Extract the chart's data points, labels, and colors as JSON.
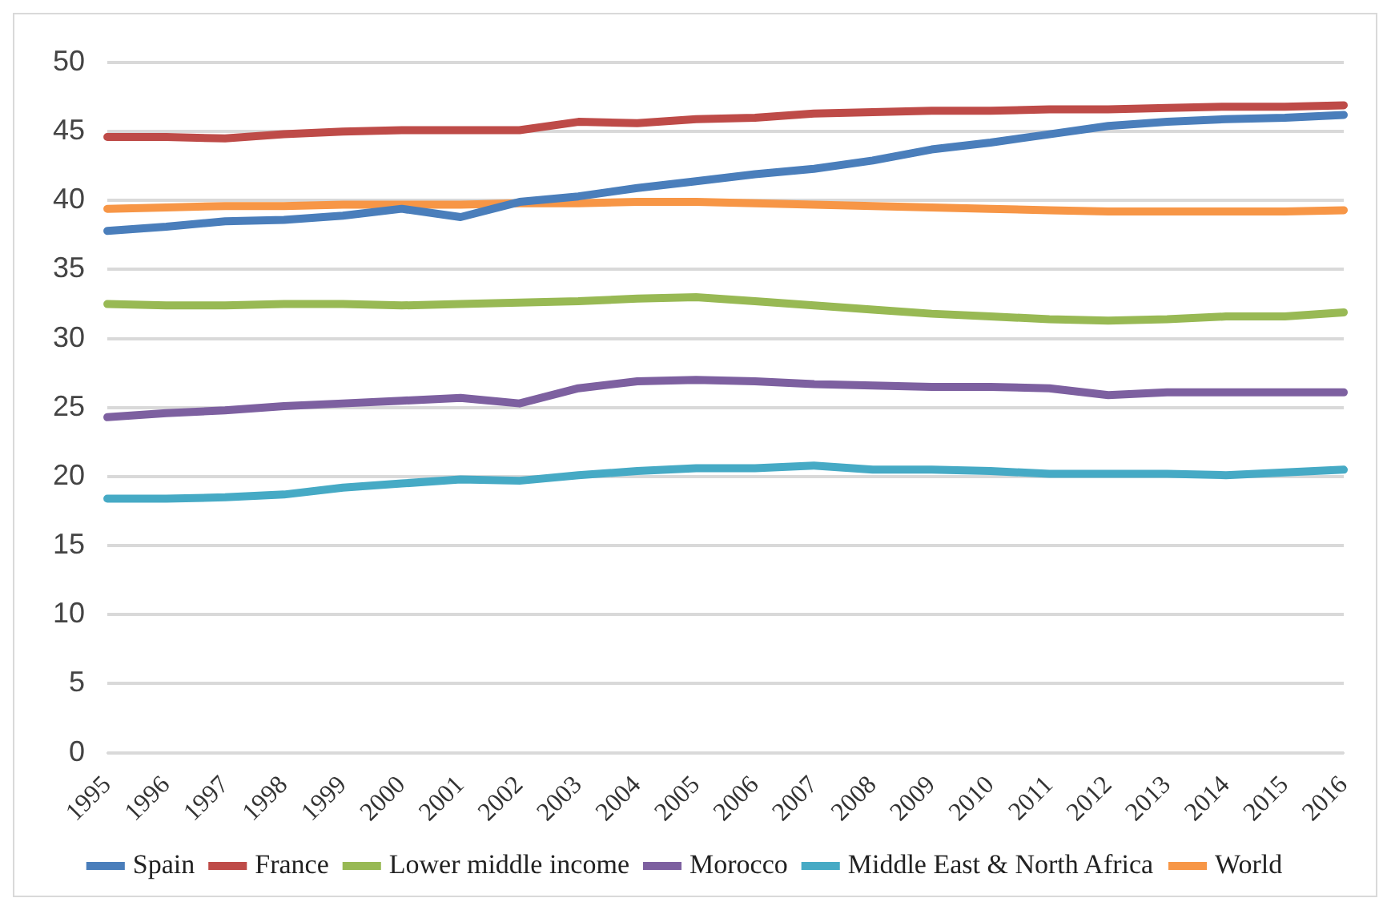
{
  "chart_data": {
    "type": "line",
    "categories": [
      "1995",
      "1996",
      "1997",
      "1998",
      "1999",
      "2000",
      "2001",
      "2002",
      "2003",
      "2004",
      "2005",
      "2006",
      "2007",
      "2008",
      "2009",
      "2010",
      "2011",
      "2012",
      "2013",
      "2014",
      "2015",
      "2016"
    ],
    "series": [
      {
        "name": "Spain",
        "color": "#4a7ebb",
        "values": [
          37.8,
          38.1,
          38.5,
          38.6,
          38.9,
          39.4,
          38.8,
          39.9,
          40.3,
          40.9,
          41.4,
          41.9,
          42.3,
          42.9,
          43.7,
          44.2,
          44.8,
          45.4,
          45.7,
          45.9,
          46.0,
          46.2
        ]
      },
      {
        "name": "France",
        "color": "#be4b48",
        "values": [
          44.6,
          44.6,
          44.5,
          44.8,
          45.0,
          45.1,
          45.1,
          45.1,
          45.7,
          45.6,
          45.9,
          46.0,
          46.3,
          46.4,
          46.5,
          46.5,
          46.6,
          46.6,
          46.7,
          46.8,
          46.8,
          46.9
        ]
      },
      {
        "name": "Lower middle income",
        "color": "#98b954",
        "values": [
          32.5,
          32.4,
          32.4,
          32.5,
          32.5,
          32.4,
          32.5,
          32.6,
          32.7,
          32.9,
          33.0,
          32.7,
          32.4,
          32.1,
          31.8,
          31.6,
          31.4,
          31.3,
          31.4,
          31.6,
          31.6,
          31.9
        ]
      },
      {
        "name": "Morocco",
        "color": "#7d60a0",
        "values": [
          24.3,
          24.6,
          24.8,
          25.1,
          25.3,
          25.5,
          25.7,
          25.3,
          26.4,
          26.9,
          27.0,
          26.9,
          26.7,
          26.6,
          26.5,
          26.5,
          26.4,
          25.9,
          26.1,
          26.1,
          26.1,
          26.1
        ]
      },
      {
        "name": "Middle East & North Africa",
        "color": "#46aac5",
        "values": [
          18.4,
          18.4,
          18.5,
          18.7,
          19.2,
          19.5,
          19.8,
          19.7,
          20.1,
          20.4,
          20.6,
          20.6,
          20.8,
          20.5,
          20.5,
          20.4,
          20.2,
          20.2,
          20.2,
          20.1,
          20.3,
          20.5
        ]
      },
      {
        "name": "World",
        "color": "#f79646",
        "values": [
          39.4,
          39.5,
          39.6,
          39.6,
          39.7,
          39.7,
          39.7,
          39.8,
          39.8,
          39.9,
          39.9,
          39.8,
          39.7,
          39.6,
          39.5,
          39.4,
          39.3,
          39.2,
          39.2,
          39.2,
          39.2,
          39.3
        ]
      }
    ],
    "ylim": [
      0,
      50
    ],
    "yticks": [
      0,
      5,
      10,
      15,
      20,
      25,
      30,
      35,
      40,
      45,
      50
    ],
    "grid": "y",
    "legend": "bottom",
    "marker": "none",
    "line_style": "solid"
  }
}
